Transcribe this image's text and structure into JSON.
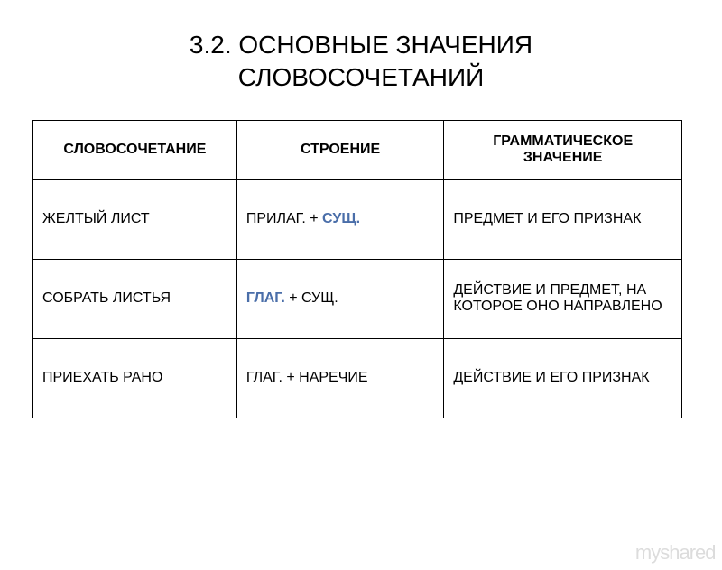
{
  "title_line1": "3.2. ОСНОВНЫЕ ЗНАЧЕНИЯ",
  "title_line2": "СЛОВОСОЧЕТАНИЙ",
  "table": {
    "headers": [
      "СЛОВОСОЧЕТАНИЕ",
      "СТРОЕНИЕ",
      "ГРАММАТИЧЕСКОЕ ЗНАЧЕНИЕ"
    ],
    "rows": [
      {
        "c1": "ЖЕЛТЫЙ ЛИСТ",
        "c2_pre": "ПРИЛАГ. + ",
        "c2_accent": "СУЩ.",
        "c2_post": "",
        "c3": "ПРЕДМЕТ И ЕГО ПРИЗНАК"
      },
      {
        "c1": "СОБРАТЬ ЛИСТЬЯ",
        "c2_pre": "",
        "c2_accent": "ГЛАГ.",
        "c2_post": " + СУЩ.",
        "c3": "ДЕЙСТВИЕ И ПРЕДМЕТ, НА КОТОРОЕ ОНО НАПРАВЛЕНО"
      },
      {
        "c1": "ПРИЕХАТЬ РАНО",
        "c2_pre": "ГЛАГ. + НАРЕЧИЕ",
        "c2_accent": "",
        "c2_post": "",
        "c3": "ДЕЙСТВИЕ И ЕГО ПРИЗНАК"
      }
    ]
  },
  "watermark_left": "myshare",
  "watermark_right": "d",
  "colors": {
    "text": "#000000",
    "accent": "#4a6ea9",
    "border": "#000000",
    "background": "#ffffff",
    "watermark": "#dcdcdc"
  }
}
